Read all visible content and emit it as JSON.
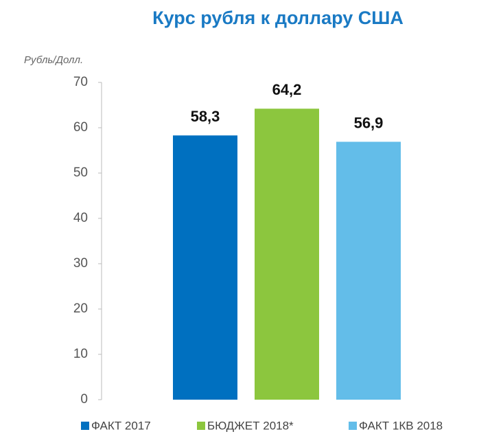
{
  "chart_data": {
    "type": "bar",
    "title": "Курс рубля к доллару США",
    "y_label": "Рубль/Долл.",
    "series": [
      {
        "name": "ФАКТ 2017",
        "color": "#0070c0",
        "values": [
          58.3
        ],
        "value_labels": [
          "58,3"
        ]
      },
      {
        "name": "БЮДЖЕТ 2018*",
        "color": "#8cc63e",
        "values": [
          64.2
        ],
        "value_labels": [
          "64,2"
        ]
      },
      {
        "name": "ФАКТ 1КВ 2018",
        "color": "#63bde9",
        "values": [
          56.9
        ],
        "value_labels": [
          "56,9"
        ]
      }
    ],
    "ylim": [
      0,
      70
    ],
    "yticks": [
      0,
      10,
      20,
      30,
      40,
      50,
      60,
      70
    ],
    "grid": false,
    "legend": "bottom"
  }
}
